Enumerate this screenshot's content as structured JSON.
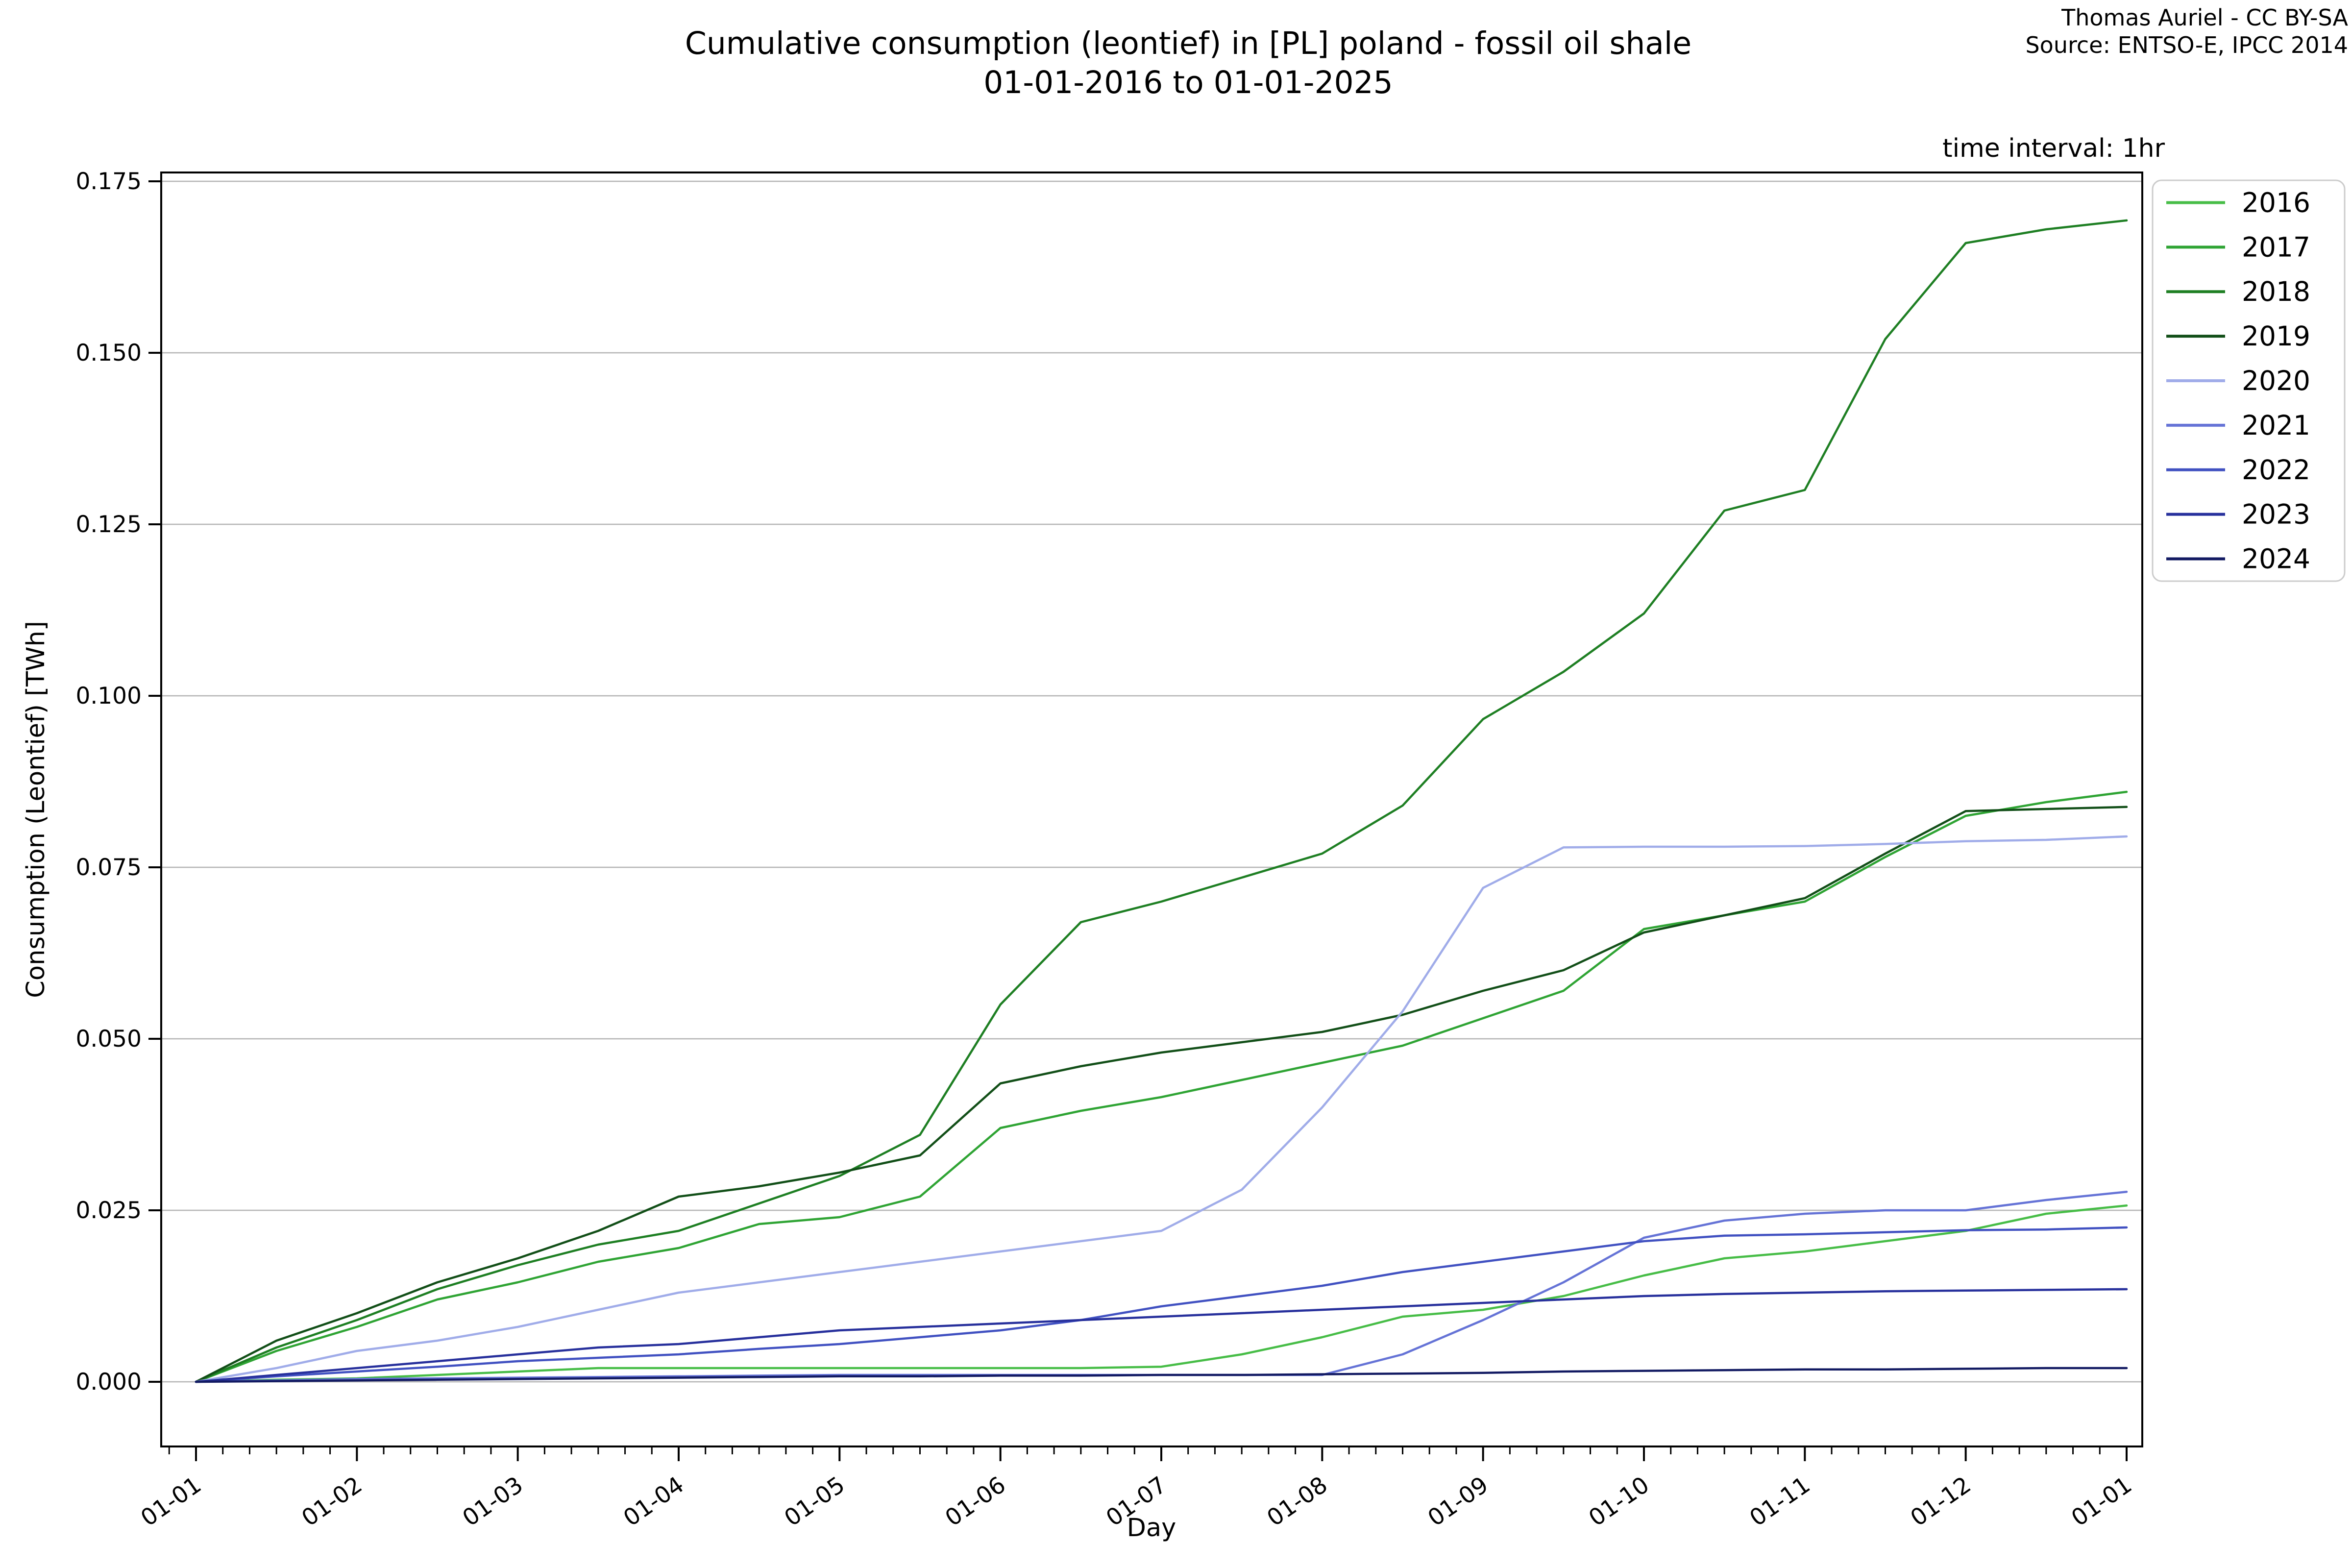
{
  "header": {
    "title_line1": "Cumulative consumption (leontief) in [PL] poland - fossil oil shale",
    "title_line2": "01-01-2016 to 01-01-2025",
    "attribution_line1": "Thomas Auriel - CC BY-SA",
    "attribution_line2": "Source: ENTSO-E, IPCC 2014",
    "time_interval": "time interval: 1hr"
  },
  "chart_data": {
    "type": "line",
    "title": "Cumulative consumption (leontief) in [PL] poland - fossil oil shale 01-01-2016 to 01-01-2025",
    "xlabel": "Day",
    "ylabel": "Consumption (Leontief) [TWh]",
    "ylim": [
      0.0,
      0.175
    ],
    "grid": "horizontal-major-only",
    "legend_position": "upper-right-outside",
    "y_ticks": [
      0.0,
      0.025,
      0.05,
      0.075,
      0.1,
      0.125,
      0.15,
      0.175
    ],
    "y_tick_labels": [
      "0.000",
      "0.025",
      "0.050",
      "0.075",
      "0.100",
      "0.125",
      "0.150",
      "0.175"
    ],
    "x_tick_labels": [
      "01-01",
      "01-02",
      "01-03",
      "01-04",
      "01-05",
      "01-06",
      "01-07",
      "01-08",
      "01-09",
      "01-10",
      "01-11",
      "01-12",
      "01-01"
    ],
    "x_minor_ticks_per_interval": 5,
    "x_month_offsets": [
      0,
      0.5,
      1,
      1.5,
      2,
      2.5,
      3,
      3.5,
      4,
      4.5,
      5,
      5.5,
      6,
      6.5,
      7,
      7.5,
      8,
      8.5,
      9,
      9.5,
      10,
      10.5,
      11,
      11.5,
      12
    ],
    "series": [
      {
        "name": "2016",
        "color": "#47bd47",
        "values": [
          0,
          0.0003,
          0.0005,
          0.001,
          0.0015,
          0.002,
          0.002,
          0.002,
          0.002,
          0.002,
          0.002,
          0.002,
          0.0022,
          0.004,
          0.0065,
          0.0095,
          0.0105,
          0.0125,
          0.0155,
          0.018,
          0.019,
          0.0205,
          0.022,
          0.0245,
          0.0257
        ]
      },
      {
        "name": "2017",
        "color": "#2fa434",
        "values": [
          0,
          0.0045,
          0.008,
          0.012,
          0.0145,
          0.0175,
          0.0195,
          0.023,
          0.024,
          0.027,
          0.037,
          0.0395,
          0.0415,
          0.044,
          0.0465,
          0.049,
          0.053,
          0.057,
          0.066,
          0.068,
          0.07,
          0.0765,
          0.0825,
          0.0845,
          0.086
        ]
      },
      {
        "name": "2018",
        "color": "#1e7f23",
        "values": [
          0,
          0.005,
          0.009,
          0.0135,
          0.017,
          0.02,
          0.022,
          0.026,
          0.03,
          0.036,
          0.055,
          0.067,
          0.07,
          0.0735,
          0.077,
          0.084,
          0.0966,
          0.1035,
          0.112,
          0.127,
          0.13,
          0.152,
          0.166,
          0.168,
          0.1693
        ]
      },
      {
        "name": "2019",
        "color": "#124f18",
        "values": [
          0,
          0.006,
          0.01,
          0.0145,
          0.018,
          0.022,
          0.027,
          0.0285,
          0.0305,
          0.033,
          0.0435,
          0.046,
          0.048,
          0.0495,
          0.051,
          0.0535,
          0.057,
          0.06,
          0.0655,
          0.068,
          0.0705,
          0.077,
          0.0832,
          0.0835,
          0.0838
        ]
      },
      {
        "name": "2020",
        "color": "#a0ace9",
        "values": [
          0,
          0.002,
          0.0045,
          0.006,
          0.008,
          0.0105,
          0.013,
          0.0145,
          0.016,
          0.0175,
          0.019,
          0.0205,
          0.022,
          0.028,
          0.04,
          0.054,
          0.072,
          0.0779,
          0.078,
          0.078,
          0.0781,
          0.0784,
          0.0788,
          0.079,
          0.0795
        ]
      },
      {
        "name": "2021",
        "color": "#6573d6",
        "values": [
          0,
          0.0002,
          0.0004,
          0.0005,
          0.0006,
          0.0007,
          0.0008,
          0.0009,
          0.001,
          0.001,
          0.001,
          0.001,
          0.001,
          0.001,
          0.001,
          0.004,
          0.009,
          0.0145,
          0.021,
          0.0235,
          0.0245,
          0.025,
          0.025,
          0.0265,
          0.0277
        ]
      },
      {
        "name": "2022",
        "color": "#4151c1",
        "values": [
          0,
          0.0008,
          0.0015,
          0.0022,
          0.003,
          0.0035,
          0.004,
          0.0048,
          0.0055,
          0.0065,
          0.0075,
          0.009,
          0.011,
          0.0125,
          0.014,
          0.016,
          0.0175,
          0.019,
          0.0205,
          0.0213,
          0.0215,
          0.0218,
          0.0221,
          0.0222,
          0.0225
        ]
      },
      {
        "name": "2023",
        "color": "#27309c",
        "values": [
          0,
          0.001,
          0.002,
          0.003,
          0.004,
          0.005,
          0.0055,
          0.0065,
          0.0075,
          0.008,
          0.0085,
          0.009,
          0.0095,
          0.01,
          0.0105,
          0.011,
          0.0115,
          0.012,
          0.0125,
          0.0128,
          0.013,
          0.0132,
          0.0133,
          0.0134,
          0.0135
        ]
      },
      {
        "name": "2024",
        "color": "#121a62",
        "values": [
          0,
          0.0001,
          0.0002,
          0.0003,
          0.0004,
          0.0005,
          0.0006,
          0.0007,
          0.0008,
          0.0008,
          0.0009,
          0.0009,
          0.001,
          0.001,
          0.0011,
          0.0012,
          0.0013,
          0.0015,
          0.0016,
          0.0017,
          0.0018,
          0.0018,
          0.0019,
          0.002,
          0.002
        ]
      }
    ]
  }
}
